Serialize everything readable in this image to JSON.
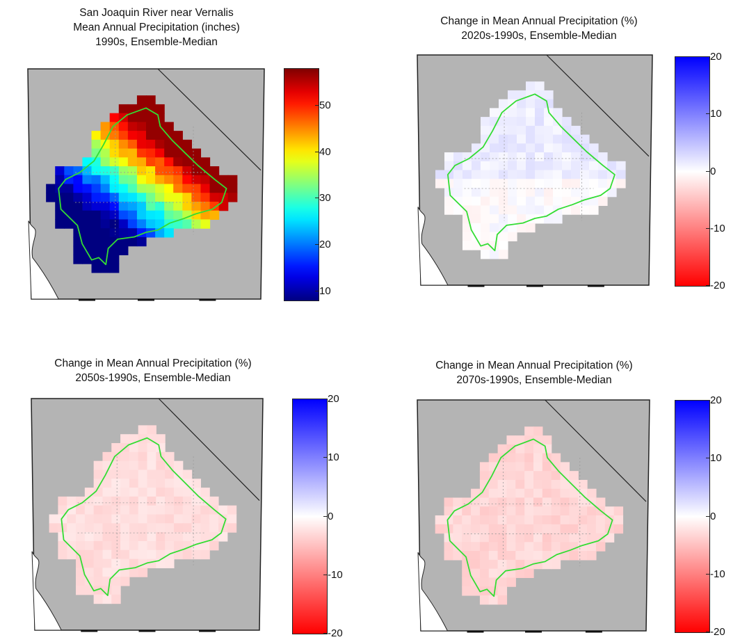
{
  "panels": [
    {
      "title_lines": [
        "San Joaquin River near Vernalis",
        "Mean Annual Precipitation (inches)",
        "1990s, Ensemble-Median"
      ],
      "colorbar": {
        "scheme": "jet",
        "min": 8,
        "max": 58,
        "ticks": [
          "10",
          "20",
          "30",
          "40",
          "50"
        ],
        "tick_values": [
          10,
          20,
          30,
          40,
          50
        ]
      },
      "field": "precip_1990s"
    },
    {
      "title_lines": [
        "Change in Mean Annual Precipitation (%)",
        "2020s-1990s, Ensemble-Median"
      ],
      "colorbar": {
        "scheme": "redwhiteblue",
        "min": -20,
        "max": 20,
        "ticks": [
          "20",
          "10",
          "0",
          "-10",
          "-20"
        ],
        "tick_values": [
          20,
          10,
          0,
          -10,
          -20
        ]
      },
      "field": "change_2020s"
    },
    {
      "title_lines": [
        "Change in Mean Annual Precipitation (%)",
        "2050s-1990s, Ensemble-Median"
      ],
      "colorbar": {
        "scheme": "redwhiteblue",
        "min": -20,
        "max": 20,
        "ticks": [
          "20",
          "10",
          "0",
          "-10",
          "-20"
        ],
        "tick_values": [
          20,
          10,
          0,
          -10,
          -20
        ]
      },
      "field": "change_2050s"
    },
    {
      "title_lines": [
        "Change in Mean Annual Precipitation (%)",
        "2070s-1990s, Ensemble-Median"
      ],
      "colorbar": {
        "scheme": "redwhiteblue",
        "min": -20,
        "max": 20,
        "ticks": [
          "20",
          "10",
          "0",
          "-10",
          "-20"
        ],
        "tick_values": [
          20,
          10,
          0,
          -10,
          -20
        ]
      },
      "field": "change_2070s"
    }
  ],
  "colors": {
    "land": "#b4b4b4",
    "ocean": "#ffffff",
    "basin_outline": "#33dd33",
    "border": "#222222",
    "grid": "#d8d8d8"
  }
}
